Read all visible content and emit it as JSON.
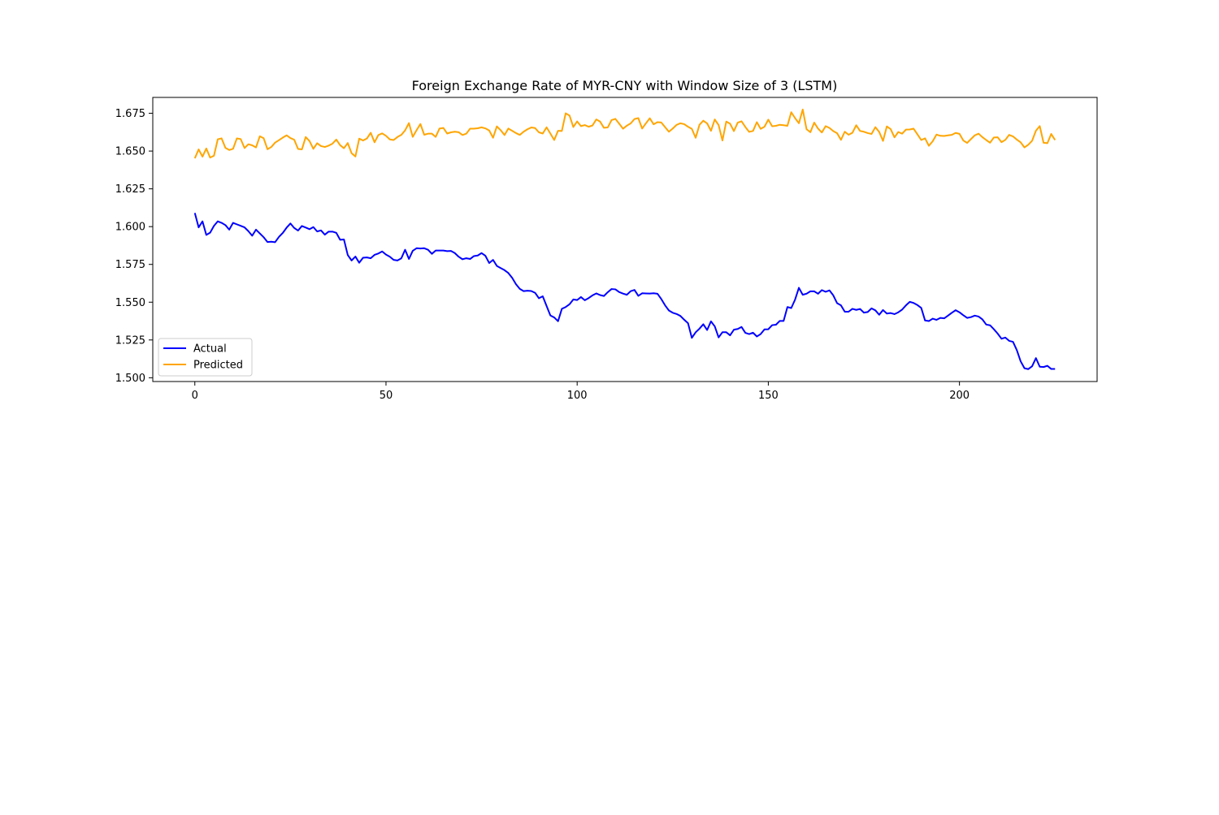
{
  "chart_data": {
    "type": "line",
    "title": "Foreign Exchange Rate of MYR-CNY with Window Size of 3 (LSTM)",
    "xlabel": "",
    "ylabel": "",
    "xlim": [
      -11,
      236
    ],
    "ylim": [
      1.4975,
      1.6855
    ],
    "xticks": [
      0,
      50,
      100,
      150,
      200
    ],
    "yticks": [
      1.5,
      1.525,
      1.55,
      1.575,
      1.6,
      1.625,
      1.65,
      1.675
    ],
    "ytick_labels": [
      "1.500",
      "1.525",
      "1.550",
      "1.575",
      "1.600",
      "1.625",
      "1.650",
      "1.675"
    ],
    "grid": false,
    "legend_position": "lower-left",
    "series": [
      {
        "name": "Actual",
        "color": "#0000ff",
        "values": [
          1.609,
          1.5995,
          1.6035,
          1.5945,
          1.596,
          1.6005,
          1.6035,
          1.6025,
          1.601,
          1.598,
          1.6025,
          1.6015,
          1.6005,
          1.5995,
          1.597,
          1.594,
          1.598,
          1.5955,
          1.593,
          1.5898,
          1.59,
          1.5897,
          1.5932,
          1.5958,
          1.5993,
          1.6021,
          1.5991,
          1.5974,
          1.6004,
          1.5994,
          1.5983,
          1.5997,
          1.5968,
          1.5975,
          1.5947,
          1.5967,
          1.5967,
          1.5959,
          1.5913,
          1.5915,
          1.5812,
          1.5776,
          1.5802,
          1.5761,
          1.5794,
          1.5796,
          1.5791,
          1.5813,
          1.5822,
          1.5836,
          1.5815,
          1.5801,
          1.578,
          1.5776,
          1.579,
          1.5847,
          1.5786,
          1.584,
          1.5857,
          1.5855,
          1.5857,
          1.5847,
          1.582,
          1.5842,
          1.5842,
          1.5842,
          1.5838,
          1.5839,
          1.5825,
          1.5801,
          1.5784,
          1.5791,
          1.5786,
          1.5805,
          1.5809,
          1.5825,
          1.5807,
          1.5759,
          1.578,
          1.574,
          1.5726,
          1.5712,
          1.5693,
          1.5661,
          1.5619,
          1.5588,
          1.5573,
          1.5576,
          1.5574,
          1.5562,
          1.5526,
          1.5539,
          1.5475,
          1.5412,
          1.5399,
          1.5374,
          1.5456,
          1.5468,
          1.5486,
          1.5518,
          1.5514,
          1.5534,
          1.5513,
          1.5527,
          1.5545,
          1.5558,
          1.5547,
          1.5541,
          1.5566,
          1.5587,
          1.5585,
          1.5567,
          1.5557,
          1.5549,
          1.5573,
          1.5581,
          1.5542,
          1.5559,
          1.5558,
          1.5557,
          1.5559,
          1.5556,
          1.5521,
          1.5479,
          1.5445,
          1.543,
          1.5422,
          1.5409,
          1.5384,
          1.5361,
          1.5264,
          1.5301,
          1.5325,
          1.5354,
          1.5316,
          1.5373,
          1.534,
          1.5267,
          1.5301,
          1.5301,
          1.5281,
          1.5318,
          1.5323,
          1.5336,
          1.5297,
          1.5289,
          1.5298,
          1.5273,
          1.5289,
          1.532,
          1.5321,
          1.5348,
          1.5351,
          1.5376,
          1.5376,
          1.5468,
          1.5461,
          1.5517,
          1.5595,
          1.5549,
          1.5556,
          1.5572,
          1.5572,
          1.5556,
          1.558,
          1.5569,
          1.5578,
          1.5545,
          1.5493,
          1.5479,
          1.5437,
          1.5437,
          1.5456,
          1.5449,
          1.5455,
          1.5431,
          1.5435,
          1.5459,
          1.5446,
          1.5417,
          1.5448,
          1.5425,
          1.5428,
          1.5421,
          1.5433,
          1.5451,
          1.5479,
          1.5502,
          1.5495,
          1.5481,
          1.5462,
          1.5379,
          1.5375,
          1.5391,
          1.5383,
          1.5396,
          1.5393,
          1.5411,
          1.543,
          1.5447,
          1.5433,
          1.5414,
          1.5396,
          1.5401,
          1.5411,
          1.5405,
          1.5386,
          1.5352,
          1.5347,
          1.5321,
          1.5292,
          1.5258,
          1.5266,
          1.5244,
          1.5238,
          1.5183,
          1.5109,
          1.5063,
          1.5057,
          1.5076,
          1.513,
          1.5073,
          1.5071,
          1.5079,
          1.5058,
          1.5058
        ]
      },
      {
        "name": "Predicted",
        "color": "#ffa500",
        "values": [
          1.6452,
          1.6511,
          1.6463,
          1.6517,
          1.6457,
          1.6469,
          1.6578,
          1.6584,
          1.6521,
          1.6507,
          1.6515,
          1.6584,
          1.6579,
          1.652,
          1.6545,
          1.6538,
          1.6524,
          1.6598,
          1.6585,
          1.6512,
          1.6527,
          1.6556,
          1.6572,
          1.6589,
          1.6604,
          1.6586,
          1.6575,
          1.6514,
          1.6511,
          1.6593,
          1.6566,
          1.6515,
          1.6552,
          1.6533,
          1.6527,
          1.6536,
          1.6549,
          1.6576,
          1.6539,
          1.6519,
          1.6553,
          1.6486,
          1.6464,
          1.6582,
          1.657,
          1.6583,
          1.6621,
          1.6558,
          1.6606,
          1.6617,
          1.6601,
          1.6577,
          1.6573,
          1.6593,
          1.6607,
          1.6637,
          1.6685,
          1.6594,
          1.6638,
          1.6679,
          1.6608,
          1.6615,
          1.6615,
          1.6594,
          1.6649,
          1.6653,
          1.6616,
          1.6624,
          1.6628,
          1.6625,
          1.6606,
          1.6615,
          1.6648,
          1.6648,
          1.6651,
          1.6657,
          1.665,
          1.6636,
          1.6588,
          1.6663,
          1.6638,
          1.6606,
          1.6649,
          1.6634,
          1.6619,
          1.6607,
          1.6628,
          1.6644,
          1.6656,
          1.6652,
          1.6624,
          1.6616,
          1.6657,
          1.6616,
          1.6573,
          1.6634,
          1.6633,
          1.675,
          1.6735,
          1.6659,
          1.6696,
          1.6665,
          1.6672,
          1.6661,
          1.6669,
          1.6709,
          1.6695,
          1.6654,
          1.6656,
          1.6705,
          1.6713,
          1.6681,
          1.6648,
          1.6668,
          1.6683,
          1.6712,
          1.6718,
          1.6649,
          1.6684,
          1.6717,
          1.6677,
          1.6691,
          1.6689,
          1.6658,
          1.6628,
          1.6649,
          1.6673,
          1.6684,
          1.6678,
          1.6661,
          1.6647,
          1.6588,
          1.6674,
          1.6701,
          1.6683,
          1.6634,
          1.6709,
          1.6672,
          1.657,
          1.6695,
          1.6681,
          1.6632,
          1.6688,
          1.6697,
          1.6659,
          1.6627,
          1.6633,
          1.6691,
          1.6647,
          1.6661,
          1.6708,
          1.6664,
          1.6667,
          1.6674,
          1.6671,
          1.6667,
          1.6757,
          1.6718,
          1.6684,
          1.6775,
          1.6645,
          1.6625,
          1.6688,
          1.6649,
          1.6623,
          1.6665,
          1.6653,
          1.6632,
          1.6618,
          1.6574,
          1.6628,
          1.6608,
          1.6621,
          1.6671,
          1.6633,
          1.6628,
          1.6619,
          1.6613,
          1.6658,
          1.6627,
          1.6567,
          1.6663,
          1.6645,
          1.6591,
          1.6626,
          1.6615,
          1.6642,
          1.6643,
          1.6648,
          1.6611,
          1.6573,
          1.6584,
          1.6535,
          1.6565,
          1.6609,
          1.6601,
          1.66,
          1.6604,
          1.6607,
          1.662,
          1.6614,
          1.657,
          1.6554,
          1.6579,
          1.6604,
          1.6615,
          1.6592,
          1.6573,
          1.6555,
          1.659,
          1.6591,
          1.6559,
          1.6574,
          1.6607,
          1.6597,
          1.6576,
          1.6558,
          1.6524,
          1.6542,
          1.6568,
          1.6635,
          1.6665,
          1.6555,
          1.6552,
          1.6613,
          1.6573
        ]
      }
    ]
  }
}
